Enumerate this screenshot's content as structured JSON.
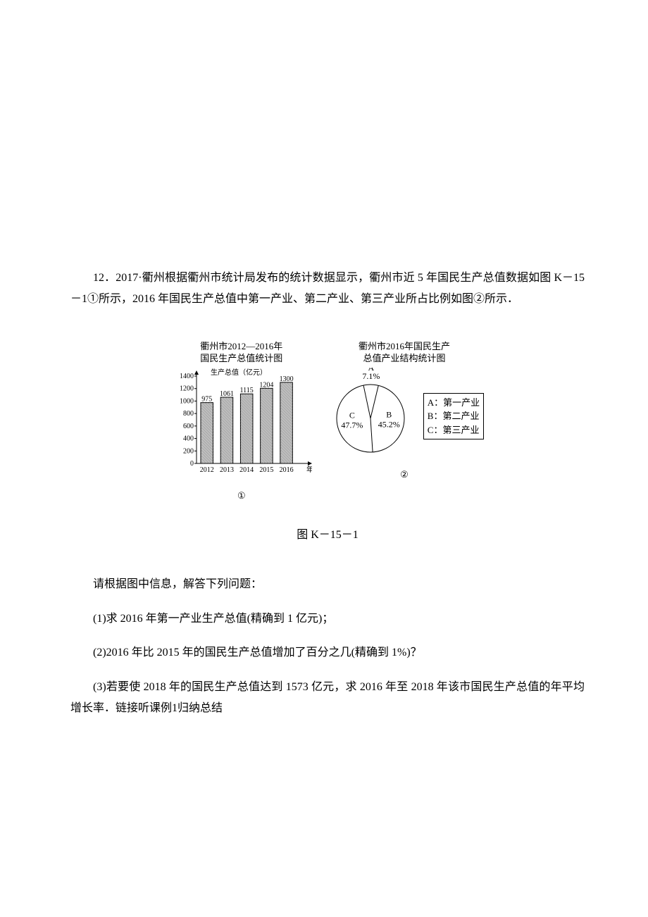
{
  "intro": {
    "line1": "12．2017·衢州根据衢州市统计局发布的统计数据显示，衢州市近 5 年国民生产总值数据如图 K－15－1①所示，2016 年国民生产总值中第一产业、第二产业、第三产业所占比例如图②所示．"
  },
  "bar": {
    "title1": "衢州市2012—2016年",
    "title2": "国民生产总值统计图",
    "ylabel": "生产总值（亿元）",
    "yticks": [
      0,
      200,
      400,
      600,
      800,
      1000,
      1200,
      1400
    ],
    "xlabel_suffix": "年份",
    "years": [
      "2012",
      "2013",
      "2014",
      "2015",
      "2016"
    ],
    "values": [
      975,
      1061,
      1115,
      1204,
      1300
    ],
    "bar_fill": "#bdbdbd",
    "bar_stroke": "#000000",
    "axis_color": "#000000",
    "label_fontsize": 10,
    "sub_label": "①"
  },
  "pie": {
    "title1": "衢州市2016年国民生产",
    "title2": "总值产业结构统计图",
    "slices": [
      {
        "name": "A",
        "percent_label": "7.1%",
        "percent": 7.1,
        "letter": "A"
      },
      {
        "name": "B",
        "percent_label": "45.2%",
        "percent": 45.2,
        "letter": "B"
      },
      {
        "name": "C",
        "percent_label": "47.7%",
        "percent": 47.7,
        "letter": "C"
      }
    ],
    "stroke": "#000000",
    "fill": "#ffffff",
    "sub_label": "②"
  },
  "legend": {
    "a": "A：第一产业",
    "b": "B：第二产业",
    "c": "C：第三产业"
  },
  "fig_caption": "图 K－15－1",
  "questions": {
    "lead": "请根据图中信息，解答下列问题：",
    "q1": "(1)求 2016 年第一产业生产总值(精确到 1 亿元)；",
    "q2": "(2)2016 年比 2015 年的国民生产总值增加了百分之几(精确到 1%)？",
    "q3": "(3)若要使 2018 年的国民生产总值达到 1573 亿元，求 2016 年至 2018 年该市国民生产总值的年平均增长率．链接听课例1归纳总结"
  }
}
